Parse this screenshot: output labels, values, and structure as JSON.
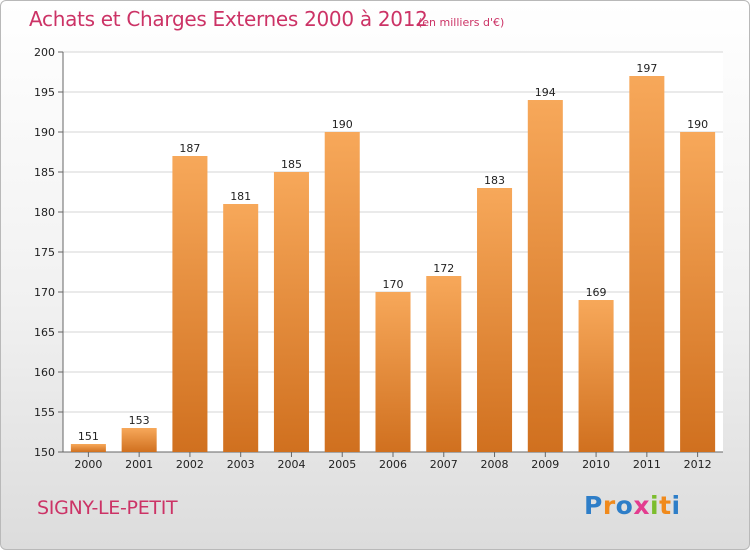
{
  "title": "Achats et Charges Externes 2000 à 2012",
  "unit_note": "(en milliers d'€)",
  "place": "SIGNY-LE-PETIT",
  "logo": {
    "text": "Proxiti",
    "letters": [
      {
        "ch": "P",
        "color": "#2e7ec8"
      },
      {
        "ch": "r",
        "color": "#f08a1c"
      },
      {
        "ch": "o",
        "color": "#2e7ec8"
      },
      {
        "ch": "x",
        "color": "#e33c8f"
      },
      {
        "ch": "i",
        "color": "#7cbd2e"
      },
      {
        "ch": "t",
        "color": "#f08a1c"
      },
      {
        "ch": "i",
        "color": "#2e7ec8"
      }
    ]
  },
  "colors": {
    "accent": "#cc3366",
    "bar_light": "#f7a85a",
    "bar_dark": "#d0701f"
  },
  "chart_data": {
    "type": "bar",
    "title": "Achats et Charges Externes 2000 à 2012",
    "xlabel": "",
    "ylabel": "",
    "categories": [
      "2000",
      "2001",
      "2002",
      "2003",
      "2004",
      "2005",
      "2006",
      "2007",
      "2008",
      "2009",
      "2010",
      "2011",
      "2012"
    ],
    "values": [
      151,
      153,
      187,
      181,
      185,
      190,
      170,
      172,
      183,
      194,
      169,
      197,
      190
    ],
    "ylim": [
      150,
      200
    ],
    "yticks": [
      150,
      155,
      160,
      165,
      170,
      175,
      180,
      185,
      190,
      195,
      200
    ],
    "grid": true,
    "legend": "none"
  }
}
